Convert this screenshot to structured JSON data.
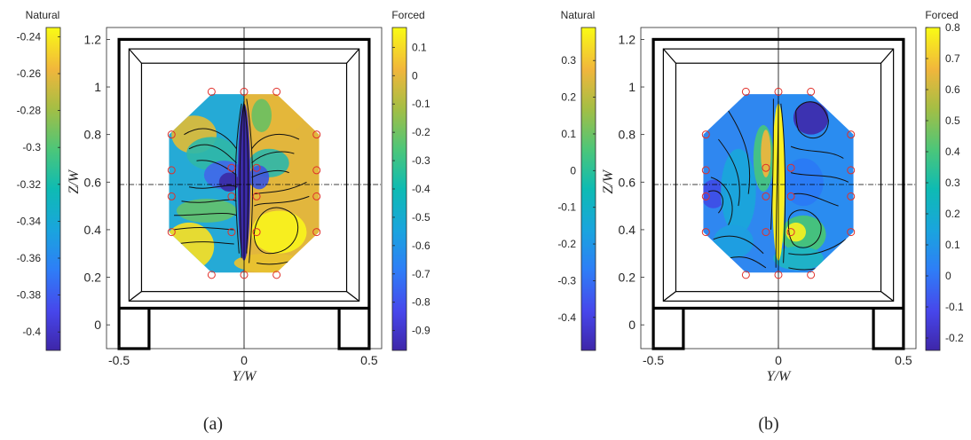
{
  "chart_data": [
    {
      "type": "heatmap",
      "panel_label": "(a)",
      "xlabel": "Y/W",
      "ylabel": "Z/W",
      "xlim": [
        -0.55,
        0.55
      ],
      "ylim": [
        -0.1,
        1.25
      ],
      "x_ticks": [
        -0.5,
        0,
        0.5
      ],
      "y_ticks": [
        0,
        0.2,
        0.4,
        0.6,
        0.8,
        1,
        1.2
      ],
      "x_tick_labels": [
        "-0.5",
        "0",
        "0.5"
      ],
      "y_tick_labels": [
        "0",
        "0.2",
        "0.4",
        "0.6",
        "0.8",
        "1",
        "1.2"
      ],
      "reference_line_z": 0.59,
      "colorbars": [
        {
          "name": "Natural",
          "side": "left",
          "range": [
            -0.41,
            -0.235
          ],
          "ticks": [
            -0.24,
            -0.26,
            -0.28,
            -0.3,
            -0.32,
            -0.34,
            -0.36,
            -0.38,
            -0.4
          ],
          "tick_labels": [
            "-0.24",
            "-0.26",
            "-0.28",
            "-0.3",
            "-0.32",
            "-0.34",
            "-0.36",
            "-0.38",
            "-0.4"
          ]
        },
        {
          "name": "Forced",
          "side": "right",
          "range": [
            -0.97,
            0.17
          ],
          "ticks": [
            0.1,
            0,
            -0.1,
            -0.2,
            -0.3,
            -0.4,
            -0.5,
            -0.6,
            -0.7,
            -0.8,
            -0.9
          ],
          "tick_labels": [
            "0.1",
            "0",
            "-0.1",
            "-0.2",
            "-0.3",
            "-0.4",
            "-0.5",
            "-0.6",
            "-0.7",
            "-0.8",
            "-0.9"
          ]
        }
      ],
      "probe_points": [
        [
          -0.13,
          0.98
        ],
        [
          0,
          0.98
        ],
        [
          0.13,
          0.98
        ],
        [
          -0.29,
          0.8
        ],
        [
          0.29,
          0.8
        ],
        [
          -0.29,
          0.65
        ],
        [
          -0.05,
          0.66
        ],
        [
          0.05,
          0.66
        ],
        [
          0.29,
          0.65
        ],
        [
          -0.29,
          0.54
        ],
        [
          -0.05,
          0.54
        ],
        [
          0.05,
          0.54
        ],
        [
          0.29,
          0.54
        ],
        [
          -0.29,
          0.39
        ],
        [
          -0.05,
          0.39
        ],
        [
          0.05,
          0.39
        ],
        [
          0.29,
          0.39
        ],
        [
          -0.13,
          0.21
        ],
        [
          0,
          0.21
        ],
        [
          0.13,
          0.21
        ]
      ]
    },
    {
      "type": "heatmap",
      "panel_label": "(b)",
      "xlabel": "Y/W",
      "ylabel": "Z/W",
      "xlim": [
        -0.55,
        0.55
      ],
      "ylim": [
        -0.1,
        1.25
      ],
      "x_ticks": [
        -0.5,
        0,
        0.5
      ],
      "y_ticks": [
        0,
        0.2,
        0.4,
        0.6,
        0.8,
        1,
        1.2
      ],
      "x_tick_labels": [
        "-0.5",
        "0",
        "0.5"
      ],
      "y_tick_labels": [
        "0",
        "0.2",
        "0.4",
        "0.6",
        "0.8",
        "1",
        "1.2"
      ],
      "reference_line_z": 0.59,
      "colorbars": [
        {
          "name": "Natural",
          "side": "left",
          "range": [
            -0.49,
            0.39
          ],
          "ticks": [
            0.3,
            0.2,
            0.1,
            0,
            -0.1,
            -0.2,
            -0.3,
            -0.4
          ],
          "tick_labels": [
            "0.3",
            "0.2",
            "0.1",
            "0",
            "-0.1",
            "-0.2",
            "-0.3",
            "-0.4"
          ]
        },
        {
          "name": "Forced",
          "side": "right",
          "range": [
            -0.24,
            0.8
          ],
          "ticks": [
            0.8,
            0.7,
            0.6,
            0.5,
            0.4,
            0.3,
            0.2,
            0.1,
            0,
            -0.1,
            -0.2
          ],
          "tick_labels": [
            "0.8",
            "0.7",
            "0.6",
            "0.5",
            "0.4",
            "0.3",
            "0.2",
            "0.1",
            "0",
            "-0.1",
            "-0.2"
          ]
        }
      ],
      "probe_points": [
        [
          -0.13,
          0.98
        ],
        [
          0,
          0.98
        ],
        [
          0.13,
          0.98
        ],
        [
          -0.29,
          0.8
        ],
        [
          0.29,
          0.8
        ],
        [
          -0.29,
          0.65
        ],
        [
          -0.05,
          0.66
        ],
        [
          0.05,
          0.66
        ],
        [
          0.29,
          0.65
        ],
        [
          -0.29,
          0.54
        ],
        [
          -0.05,
          0.54
        ],
        [
          0.05,
          0.54
        ],
        [
          0.29,
          0.54
        ],
        [
          -0.29,
          0.39
        ],
        [
          -0.05,
          0.39
        ],
        [
          0.05,
          0.39
        ],
        [
          0.29,
          0.39
        ],
        [
          -0.13,
          0.21
        ],
        [
          0,
          0.21
        ],
        [
          0.13,
          0.21
        ]
      ]
    }
  ]
}
